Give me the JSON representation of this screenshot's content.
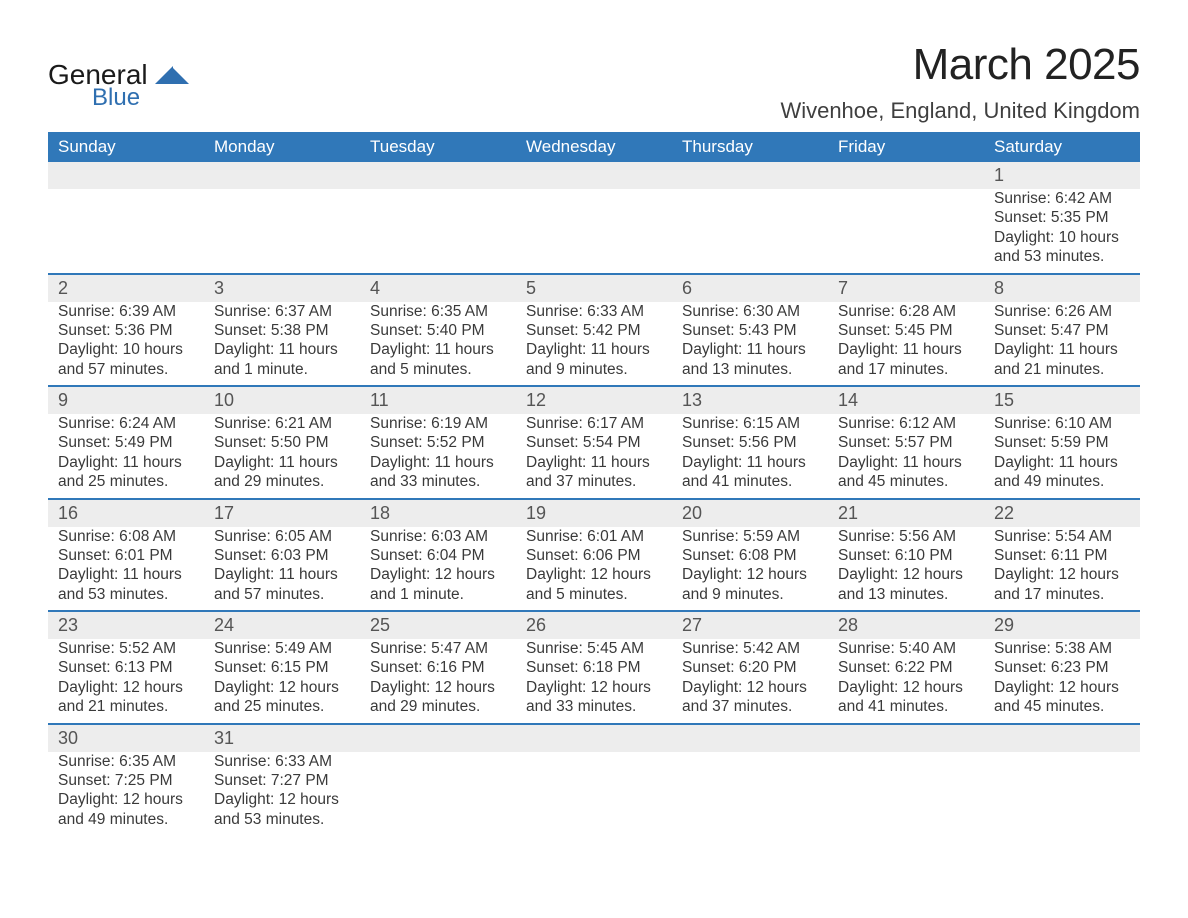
{
  "brand": {
    "name1": "General",
    "name2": "Blue"
  },
  "title": "March 2025",
  "location": "Wivenhoe, England, United Kingdom",
  "colors": {
    "header_bg": "#3078b9",
    "header_text": "#ffffff",
    "daynum_bg": "#ededed",
    "row_border": "#3078b9",
    "text": "#3a3a3a",
    "brand_dark": "#1a1a1a",
    "brand_blue": "#2f6fb0"
  },
  "typography": {
    "title_size": 44,
    "location_size": 22,
    "dayhead_size": 17,
    "body_size": 15.5
  },
  "weekdays": [
    "Sunday",
    "Monday",
    "Tuesday",
    "Wednesday",
    "Thursday",
    "Friday",
    "Saturday"
  ],
  "weeks": [
    [
      null,
      null,
      null,
      null,
      null,
      null,
      {
        "n": "1",
        "sunrise": "Sunrise: 6:42 AM",
        "sunset": "Sunset: 5:35 PM",
        "daylight": "Daylight: 10 hours and 53 minutes."
      }
    ],
    [
      {
        "n": "2",
        "sunrise": "Sunrise: 6:39 AM",
        "sunset": "Sunset: 5:36 PM",
        "daylight": "Daylight: 10 hours and 57 minutes."
      },
      {
        "n": "3",
        "sunrise": "Sunrise: 6:37 AM",
        "sunset": "Sunset: 5:38 PM",
        "daylight": "Daylight: 11 hours and 1 minute."
      },
      {
        "n": "4",
        "sunrise": "Sunrise: 6:35 AM",
        "sunset": "Sunset: 5:40 PM",
        "daylight": "Daylight: 11 hours and 5 minutes."
      },
      {
        "n": "5",
        "sunrise": "Sunrise: 6:33 AM",
        "sunset": "Sunset: 5:42 PM",
        "daylight": "Daylight: 11 hours and 9 minutes."
      },
      {
        "n": "6",
        "sunrise": "Sunrise: 6:30 AM",
        "sunset": "Sunset: 5:43 PM",
        "daylight": "Daylight: 11 hours and 13 minutes."
      },
      {
        "n": "7",
        "sunrise": "Sunrise: 6:28 AM",
        "sunset": "Sunset: 5:45 PM",
        "daylight": "Daylight: 11 hours and 17 minutes."
      },
      {
        "n": "8",
        "sunrise": "Sunrise: 6:26 AM",
        "sunset": "Sunset: 5:47 PM",
        "daylight": "Daylight: 11 hours and 21 minutes."
      }
    ],
    [
      {
        "n": "9",
        "sunrise": "Sunrise: 6:24 AM",
        "sunset": "Sunset: 5:49 PM",
        "daylight": "Daylight: 11 hours and 25 minutes."
      },
      {
        "n": "10",
        "sunrise": "Sunrise: 6:21 AM",
        "sunset": "Sunset: 5:50 PM",
        "daylight": "Daylight: 11 hours and 29 minutes."
      },
      {
        "n": "11",
        "sunrise": "Sunrise: 6:19 AM",
        "sunset": "Sunset: 5:52 PM",
        "daylight": "Daylight: 11 hours and 33 minutes."
      },
      {
        "n": "12",
        "sunrise": "Sunrise: 6:17 AM",
        "sunset": "Sunset: 5:54 PM",
        "daylight": "Daylight: 11 hours and 37 minutes."
      },
      {
        "n": "13",
        "sunrise": "Sunrise: 6:15 AM",
        "sunset": "Sunset: 5:56 PM",
        "daylight": "Daylight: 11 hours and 41 minutes."
      },
      {
        "n": "14",
        "sunrise": "Sunrise: 6:12 AM",
        "sunset": "Sunset: 5:57 PM",
        "daylight": "Daylight: 11 hours and 45 minutes."
      },
      {
        "n": "15",
        "sunrise": "Sunrise: 6:10 AM",
        "sunset": "Sunset: 5:59 PM",
        "daylight": "Daylight: 11 hours and 49 minutes."
      }
    ],
    [
      {
        "n": "16",
        "sunrise": "Sunrise: 6:08 AM",
        "sunset": "Sunset: 6:01 PM",
        "daylight": "Daylight: 11 hours and 53 minutes."
      },
      {
        "n": "17",
        "sunrise": "Sunrise: 6:05 AM",
        "sunset": "Sunset: 6:03 PM",
        "daylight": "Daylight: 11 hours and 57 minutes."
      },
      {
        "n": "18",
        "sunrise": "Sunrise: 6:03 AM",
        "sunset": "Sunset: 6:04 PM",
        "daylight": "Daylight: 12 hours and 1 minute."
      },
      {
        "n": "19",
        "sunrise": "Sunrise: 6:01 AM",
        "sunset": "Sunset: 6:06 PM",
        "daylight": "Daylight: 12 hours and 5 minutes."
      },
      {
        "n": "20",
        "sunrise": "Sunrise: 5:59 AM",
        "sunset": "Sunset: 6:08 PM",
        "daylight": "Daylight: 12 hours and 9 minutes."
      },
      {
        "n": "21",
        "sunrise": "Sunrise: 5:56 AM",
        "sunset": "Sunset: 6:10 PM",
        "daylight": "Daylight: 12 hours and 13 minutes."
      },
      {
        "n": "22",
        "sunrise": "Sunrise: 5:54 AM",
        "sunset": "Sunset: 6:11 PM",
        "daylight": "Daylight: 12 hours and 17 minutes."
      }
    ],
    [
      {
        "n": "23",
        "sunrise": "Sunrise: 5:52 AM",
        "sunset": "Sunset: 6:13 PM",
        "daylight": "Daylight: 12 hours and 21 minutes."
      },
      {
        "n": "24",
        "sunrise": "Sunrise: 5:49 AM",
        "sunset": "Sunset: 6:15 PM",
        "daylight": "Daylight: 12 hours and 25 minutes."
      },
      {
        "n": "25",
        "sunrise": "Sunrise: 5:47 AM",
        "sunset": "Sunset: 6:16 PM",
        "daylight": "Daylight: 12 hours and 29 minutes."
      },
      {
        "n": "26",
        "sunrise": "Sunrise: 5:45 AM",
        "sunset": "Sunset: 6:18 PM",
        "daylight": "Daylight: 12 hours and 33 minutes."
      },
      {
        "n": "27",
        "sunrise": "Sunrise: 5:42 AM",
        "sunset": "Sunset: 6:20 PM",
        "daylight": "Daylight: 12 hours and 37 minutes."
      },
      {
        "n": "28",
        "sunrise": "Sunrise: 5:40 AM",
        "sunset": "Sunset: 6:22 PM",
        "daylight": "Daylight: 12 hours and 41 minutes."
      },
      {
        "n": "29",
        "sunrise": "Sunrise: 5:38 AM",
        "sunset": "Sunset: 6:23 PM",
        "daylight": "Daylight: 12 hours and 45 minutes."
      }
    ],
    [
      {
        "n": "30",
        "sunrise": "Sunrise: 6:35 AM",
        "sunset": "Sunset: 7:25 PM",
        "daylight": "Daylight: 12 hours and 49 minutes."
      },
      {
        "n": "31",
        "sunrise": "Sunrise: 6:33 AM",
        "sunset": "Sunset: 7:27 PM",
        "daylight": "Daylight: 12 hours and 53 minutes."
      },
      null,
      null,
      null,
      null,
      null
    ]
  ]
}
